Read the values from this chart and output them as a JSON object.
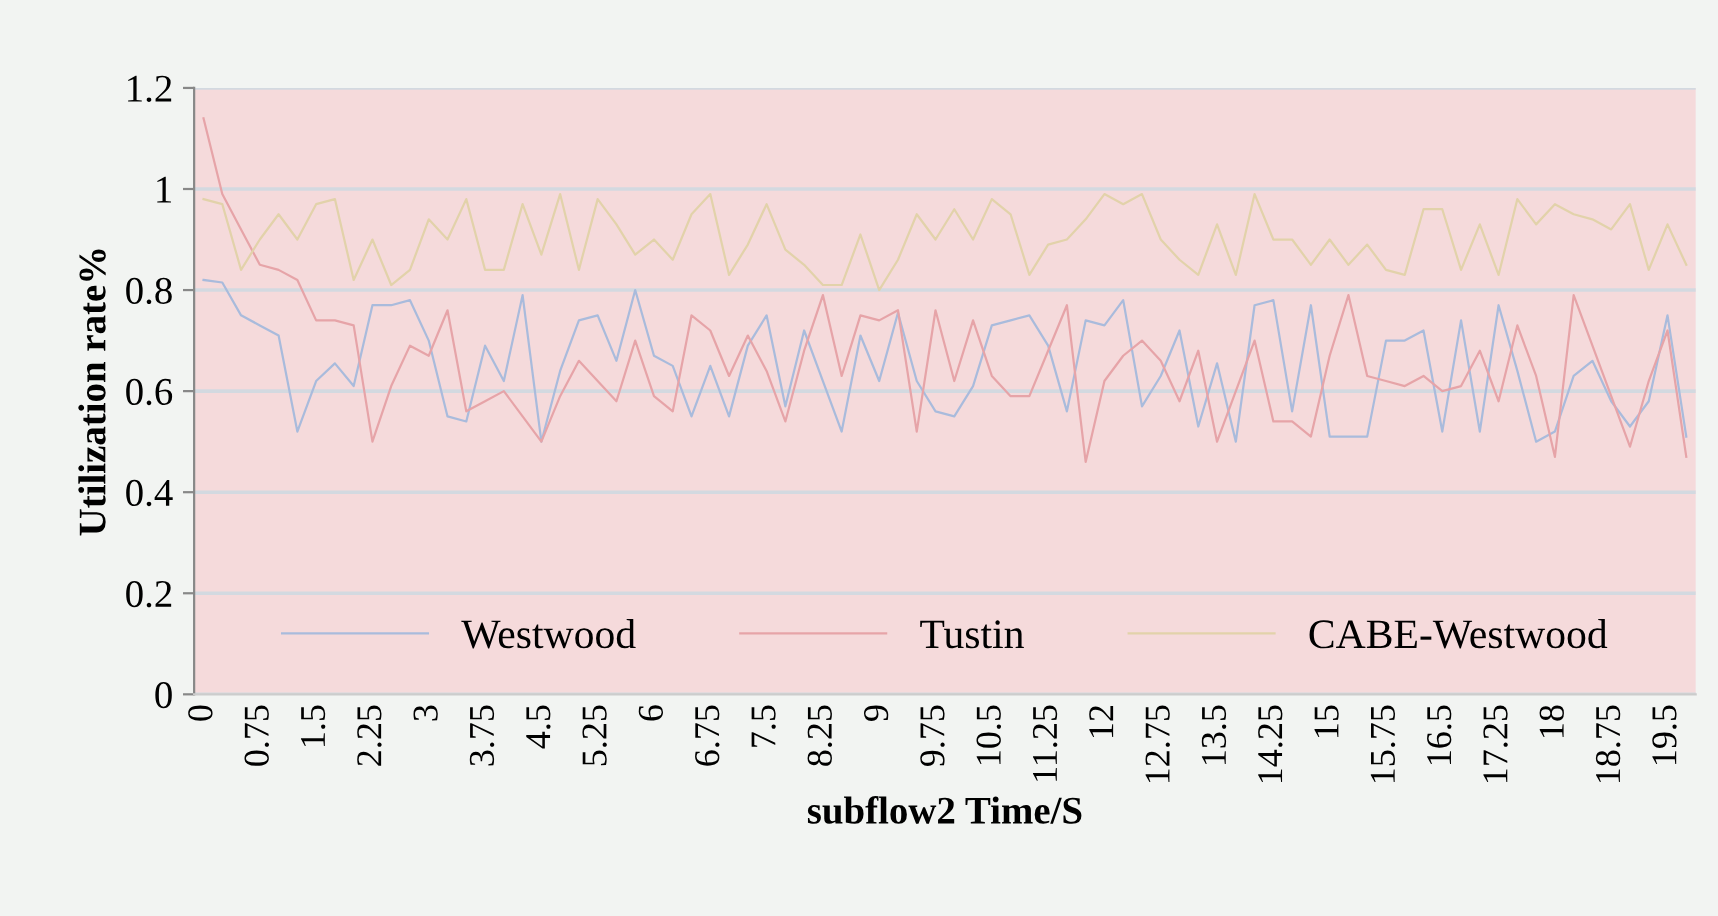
{
  "chart_data": {
    "type": "line",
    "xlabel": "subflow2 Time/S",
    "ylabel": "Utilization rate%",
    "categories": [
      "0",
      null,
      null,
      "0.75",
      null,
      null,
      "1.5",
      null,
      null,
      "2.25",
      null,
      null,
      "3",
      null,
      null,
      "3.75",
      null,
      null,
      "4.5",
      null,
      null,
      "5.25",
      null,
      null,
      "6",
      null,
      null,
      "6.75",
      null,
      null,
      "7.5",
      null,
      null,
      "8.25",
      null,
      null,
      "9",
      null,
      null,
      "9.75",
      null,
      null,
      "10.5",
      null,
      null,
      "11.25",
      null,
      null,
      "12",
      null,
      null,
      "12.75",
      null,
      null,
      "13.5",
      null,
      null,
      "14.25",
      null,
      null,
      "15",
      null,
      null,
      "15.75",
      null,
      null,
      "16.5",
      null,
      null,
      "17.25",
      null,
      null,
      "18",
      null,
      null,
      "18.75",
      null,
      null,
      "19.5",
      null
    ],
    "series": [
      {
        "name": "Westwood",
        "color": "#a9bbdc",
        "values": [
          0.82,
          0.815,
          0.75,
          0.73,
          0.71,
          0.52,
          0.62,
          0.655,
          0.61,
          0.77,
          0.77,
          0.78,
          0.7,
          0.55,
          0.54,
          0.69,
          0.62,
          0.79,
          0.5,
          0.64,
          0.74,
          0.75,
          0.66,
          0.8,
          0.67,
          0.65,
          0.55,
          0.65,
          0.55,
          0.69,
          0.75,
          0.57,
          0.72,
          0.62,
          0.52,
          0.71,
          0.62,
          0.755,
          0.62,
          0.56,
          0.55,
          0.61,
          0.73,
          0.74,
          0.75,
          0.69,
          0.56,
          0.74,
          0.73,
          0.78,
          0.57,
          0.63,
          0.72,
          0.53,
          0.655,
          0.5,
          0.77,
          0.78,
          0.56,
          0.77,
          0.51,
          0.51,
          0.51,
          0.7,
          0.7,
          0.72,
          0.52,
          0.74,
          0.52,
          0.77,
          0.64,
          0.5,
          0.52,
          0.63,
          0.66,
          0.58,
          0.53,
          0.58,
          0.75,
          0.51
        ]
      },
      {
        "name": "Tustin",
        "color": "#e6a4a8",
        "values": [
          1.14,
          0.99,
          0.92,
          0.85,
          0.84,
          0.82,
          0.74,
          0.74,
          0.73,
          0.5,
          0.61,
          0.69,
          0.67,
          0.76,
          0.56,
          0.58,
          0.6,
          0.55,
          0.5,
          0.59,
          0.66,
          0.62,
          0.58,
          0.7,
          0.59,
          0.56,
          0.75,
          0.72,
          0.63,
          0.71,
          0.64,
          0.54,
          0.68,
          0.79,
          0.63,
          0.75,
          0.74,
          0.76,
          0.52,
          0.76,
          0.62,
          0.74,
          0.63,
          0.59,
          0.59,
          0.68,
          0.77,
          0.46,
          0.62,
          0.67,
          0.7,
          0.66,
          0.58,
          0.68,
          0.5,
          0.6,
          0.7,
          0.54,
          0.54,
          0.51,
          0.67,
          0.79,
          0.63,
          0.62,
          0.61,
          0.63,
          0.6,
          0.61,
          0.68,
          0.58,
          0.73,
          0.63,
          0.47,
          0.79,
          0.69,
          0.59,
          0.49,
          0.62,
          0.72,
          0.47
        ]
      },
      {
        "name": "CABE-Westwood",
        "color": "#e2d2aa",
        "values": [
          0.98,
          0.97,
          0.84,
          0.9,
          0.95,
          0.9,
          0.97,
          0.98,
          0.82,
          0.9,
          0.81,
          0.84,
          0.94,
          0.9,
          0.98,
          0.84,
          0.84,
          0.97,
          0.87,
          0.99,
          0.84,
          0.98,
          0.93,
          0.87,
          0.9,
          0.86,
          0.95,
          0.99,
          0.83,
          0.89,
          0.97,
          0.88,
          0.85,
          0.81,
          0.81,
          0.91,
          0.8,
          0.86,
          0.95,
          0.9,
          0.96,
          0.9,
          0.98,
          0.95,
          0.83,
          0.89,
          0.9,
          0.94,
          0.99,
          0.97,
          0.99,
          0.9,
          0.86,
          0.83,
          0.93,
          0.83,
          0.99,
          0.9,
          0.9,
          0.85,
          0.9,
          0.85,
          0.89,
          0.84,
          0.83,
          0.96,
          0.96,
          0.84,
          0.93,
          0.83,
          0.98,
          0.93,
          0.97,
          0.95,
          0.94,
          0.92,
          0.97,
          0.84,
          0.93,
          0.85
        ]
      }
    ],
    "ylim": [
      0,
      1.2
    ],
    "yticks": [
      0,
      0.2,
      0.4,
      0.6,
      0.8,
      1,
      1.2
    ],
    "grid": "y",
    "legend": "bottom",
    "marker": "none",
    "line_style": "solid"
  }
}
